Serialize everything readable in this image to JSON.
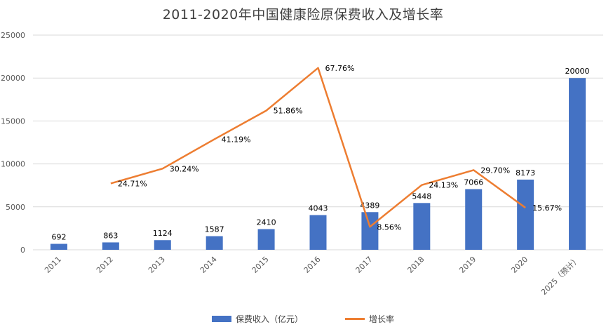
{
  "chart_data": {
    "type": "bar",
    "title": "2011-2020年中国健康险原保费收入及增长率",
    "categories": [
      "2011",
      "2012",
      "2013",
      "2014",
      "2015",
      "2016",
      "2017",
      "2018",
      "2019",
      "2020",
      "2025（预计）"
    ],
    "ylim": [
      0,
      25000
    ],
    "yticks": [
      0,
      5000,
      10000,
      15000,
      20000,
      25000
    ],
    "grid": true,
    "legend_position": "bottom",
    "series": [
      {
        "name": "保费收入（亿元）",
        "type": "bar",
        "color": "#4472C4",
        "values": [
          692,
          863,
          1124,
          1587,
          2410,
          4043,
          4389,
          5448,
          7066,
          8173,
          20000
        ],
        "labels": [
          "692",
          "863",
          "1124",
          "1587",
          "2410",
          "4043",
          "4389",
          "5448",
          "7066",
          "8173",
          "20000"
        ]
      },
      {
        "name": "增长率",
        "type": "line",
        "color": "#ED7D31",
        "values": [
          null,
          24.71,
          30.24,
          41.19,
          51.86,
          67.76,
          8.56,
          24.13,
          29.7,
          15.67,
          null
        ],
        "labels": [
          null,
          "24.71%",
          "30.24%",
          "41.19%",
          "51.86%",
          "67.76%",
          "8.56%",
          "24.13%",
          "29.70%",
          "15.67%",
          null
        ]
      }
    ]
  }
}
